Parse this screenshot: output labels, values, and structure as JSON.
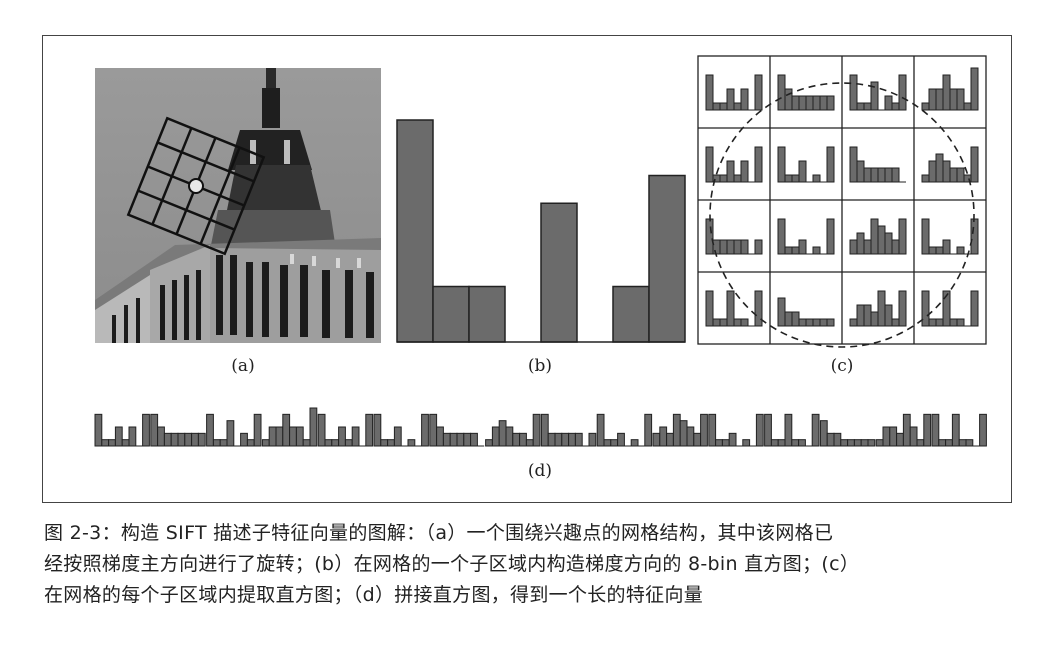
{
  "figure": {
    "panel_labels": {
      "a": "(a)",
      "b": "(b)",
      "c": "(c)",
      "d": "(d)"
    }
  },
  "caption": {
    "line1": "图 2-3：构造 SIFT 描述子特征向量的图解：（a）一个围绕兴趣点的网格结构，其中该网格已",
    "line2": "经按照梯度主方向进行了旋转；(b）在网格的一个子区域内构造梯度方向的 8-bin 直方图；(c）",
    "line3": "在网格的每个子区域内提取直方图；（d）拼接直方图，得到一个长的特征向量"
  },
  "colors": {
    "bar_fill": "#6b6b6b",
    "bar_stroke": "#222222",
    "frame": "#444444"
  },
  "chart_data": {
    "type": "bar",
    "bins": 8,
    "values": [
      8,
      2,
      2,
      0,
      5,
      0,
      2,
      6
    ],
    "subregion_histograms": [
      [
        5,
        1,
        1,
        3,
        1,
        3,
        0,
        5
      ],
      [
        5,
        3,
        2,
        2,
        2,
        2,
        2,
        2
      ],
      [
        5,
        1,
        1,
        4,
        0,
        2,
        1,
        5
      ],
      [
        1,
        3,
        3,
        5,
        3,
        3,
        1,
        6
      ],
      [
        5,
        1,
        1,
        3,
        1,
        3,
        0,
        5
      ],
      [
        5,
        1,
        1,
        3,
        0,
        1,
        0,
        5
      ],
      [
        5,
        3,
        2,
        2,
        2,
        2,
        2,
        0
      ],
      [
        1,
        3,
        4,
        3,
        2,
        2,
        1,
        5
      ],
      [
        5,
        2,
        2,
        2,
        2,
        2,
        0,
        2
      ],
      [
        5,
        1,
        1,
        2,
        0,
        1,
        0,
        5
      ],
      [
        2,
        3,
        2,
        5,
        4,
        3,
        2,
        5
      ],
      [
        5,
        1,
        1,
        2,
        0,
        1,
        0,
        5
      ],
      [
        5,
        1,
        1,
        5,
        1,
        1,
        0,
        5
      ],
      [
        4,
        2,
        2,
        1,
        1,
        1,
        1,
        1
      ],
      [
        1,
        3,
        3,
        2,
        5,
        3,
        1,
        5
      ],
      [
        5,
        1,
        1,
        5,
        1,
        1,
        0,
        5
      ]
    ]
  }
}
